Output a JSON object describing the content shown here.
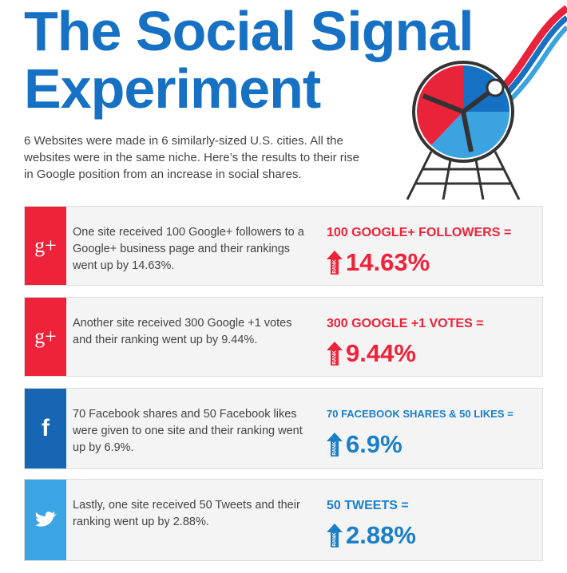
{
  "header": {
    "title_lines": [
      "The Social Signal",
      "Experiment"
    ],
    "intro": "6 Websites were made in 6 similarly-sized U.S. cities.  All the websites were in the same niche.  Here’s the results to their rise in Google position from an increase in social shares."
  },
  "rank_label": "RANK",
  "items": [
    {
      "icon": "g+",
      "text": "One site received 100 Google+ followers to a Google+ business page and their rankings went up by 14.63%.",
      "headline": "100 GOOGLE+ FOLLOWERS =",
      "stat": "14.63%"
    },
    {
      "icon": "g+",
      "text": "Another site received 300 Google +1 votes and their ranking went up by 9.44%.",
      "headline": "300 GOOGLE +1 VOTES =",
      "stat": "9.44%"
    },
    {
      "icon": "f",
      "text": "70 Facebook shares and 50 Facebook likes were given to one site and their ranking went up by 6.9%.",
      "headline": "70 FACEBOOK SHARES & 50 LIKES =",
      "stat": "6.9%"
    },
    {
      "icon": null,
      "text": "Lastly, one site received 50 Tweets and their ranking went up by 2.88%.",
      "headline": "50 TWEETS =",
      "stat": "2.88%"
    }
  ]
}
